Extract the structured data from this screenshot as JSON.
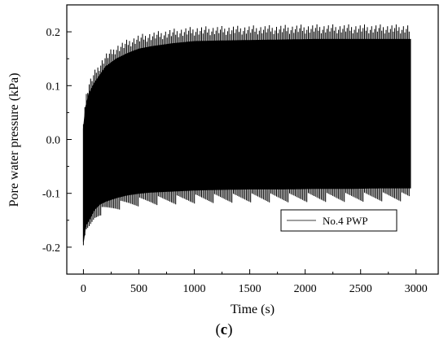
{
  "chart_data": {
    "type": "line",
    "title": "",
    "xlabel": "Time (s)",
    "ylabel": "Pore water pressure (kPa)",
    "xlim": [
      -150,
      3200
    ],
    "ylim": [
      -0.25,
      0.25
    ],
    "xticks": [
      0,
      500,
      1000,
      1500,
      2000,
      2500,
      3000
    ],
    "xtick_labels": [
      "0",
      "500",
      "1000",
      "1500",
      "2000",
      "2500",
      "3000"
    ],
    "yticks": [
      -0.2,
      -0.1,
      0.0,
      0.1,
      0.2
    ],
    "ytick_labels": [
      "-0.2",
      "-0.1",
      "0.0",
      "0.1",
      "0.2"
    ],
    "grid": false,
    "legend_position": "bottom-right",
    "line_color": "#000000",
    "series": [
      {
        "name": "No.4 PWP",
        "x": [
          0,
          20,
          50,
          100,
          150,
          200,
          300,
          400,
          500,
          600,
          700,
          800,
          900,
          1000,
          1200,
          1500,
          1800,
          2100,
          2400,
          2700,
          2950
        ],
        "upper": [
          0.02,
          0.06,
          0.085,
          0.105,
          0.12,
          0.135,
          0.15,
          0.16,
          0.168,
          0.172,
          0.175,
          0.178,
          0.18,
          0.182,
          0.183,
          0.184,
          0.185,
          0.186,
          0.186,
          0.186,
          0.186
        ],
        "lower": [
          -0.19,
          -0.16,
          -0.15,
          -0.13,
          -0.12,
          -0.115,
          -0.108,
          -0.103,
          -0.1,
          -0.098,
          -0.097,
          -0.096,
          -0.095,
          -0.094,
          -0.093,
          -0.092,
          -0.092,
          -0.091,
          -0.091,
          -0.09,
          -0.09
        ]
      }
    ]
  },
  "caption": {
    "open": "(",
    "letter": "c",
    "close": ")"
  }
}
